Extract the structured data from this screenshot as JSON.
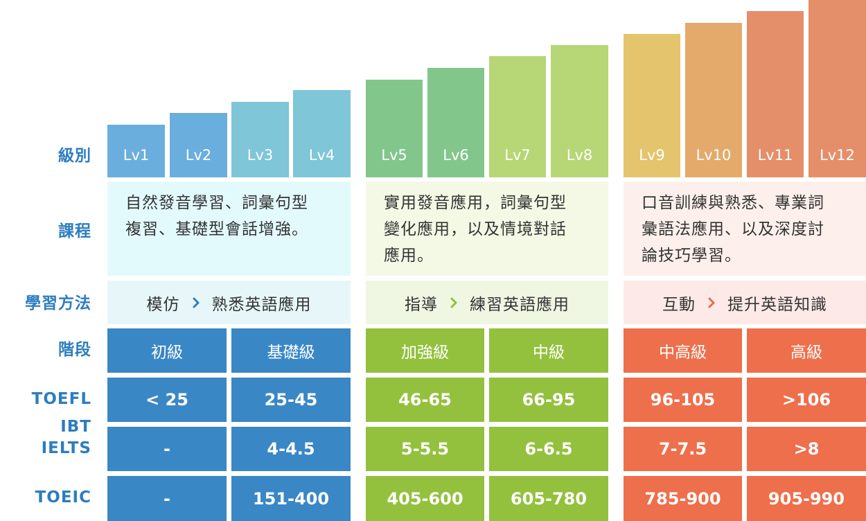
{
  "row_labels": {
    "level": "級別",
    "course": "課程",
    "method": "學習方法",
    "stage": "階段",
    "toefl": "TOEFL IBT",
    "ielts": "IELTS",
    "toeic": "TOEIC"
  },
  "levels": [
    "Lv1",
    "Lv2",
    "Lv3",
    "Lv4",
    "Lv5",
    "Lv6",
    "Lv7",
    "Lv8",
    "Lv9",
    "Lv10",
    "Lv11",
    "Lv12"
  ],
  "groups": [
    {
      "course_lines": [
        "自然發音學習、詞彙句型",
        "複習、基礎型會話增強。"
      ],
      "method_from": "模仿",
      "method_to": "熟悉英語應用",
      "stages": [
        "初級",
        "基礎級"
      ],
      "toefl": [
        "< 25",
        "25-45"
      ],
      "ielts": [
        "-",
        "4-4.5"
      ],
      "toeic": [
        "-",
        "151-400"
      ]
    },
    {
      "course_lines": [
        "實用發音應用，詞彙句型",
        "變化應用，以及情境對話",
        "應用。"
      ],
      "method_from": "指導",
      "method_to": "練習英語應用",
      "stages": [
        "加強級",
        "中級"
      ],
      "toefl": [
        "46-65",
        "66-95"
      ],
      "ielts": [
        "5-5.5",
        "6-6.5"
      ],
      "toeic": [
        "405-600",
        "605-780"
      ]
    },
    {
      "course_lines": [
        "口音訓練與熟悉、專業詞",
        "彙語法應用、以及深度討",
        "論技巧學習。"
      ],
      "method_from": "互動",
      "method_to": "提升英語知識",
      "stages": [
        "中高級",
        "高級"
      ],
      "toefl": [
        "96-105",
        ">106"
      ],
      "ielts": [
        "7-7.5",
        ">8"
      ],
      "toeic": [
        "785-900",
        "905-990"
      ]
    }
  ],
  "colors": {
    "bars": [
      "#6aaede",
      "#6aaede",
      "#7ec6d8",
      "#7ec6d8",
      "#82c68b",
      "#82c68b",
      "#b7d676",
      "#b7d676",
      "#e4c46c",
      "#e4aa6c",
      "#e58e6a",
      "#e58e6a"
    ],
    "course_bg": [
      "#e3fafd",
      "#f3f9e5",
      "#fdf0ec"
    ],
    "method_bg": [
      "#e7f7f9",
      "#eff6e1",
      "#fde9e7"
    ],
    "table": [
      "#3a87c6",
      "#93c13e",
      "#ee6f4b"
    ],
    "chevron": [
      "#2d7dc0",
      "#8fc23c",
      "#ec6a48"
    ],
    "label": "#2d7dc0"
  }
}
